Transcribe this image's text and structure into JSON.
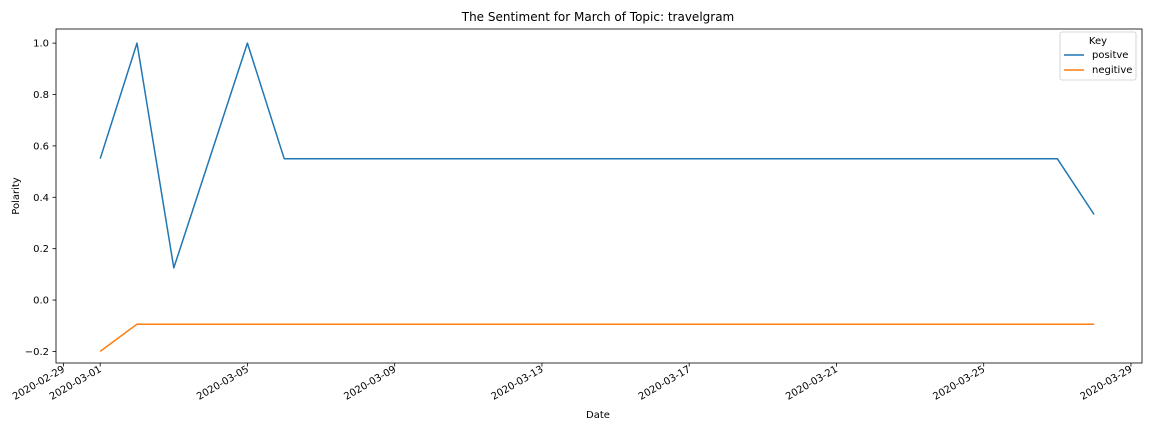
{
  "chart_data": {
    "type": "line",
    "title": "The Sentiment for March of Topic: travelgram",
    "xlabel": "Date",
    "ylabel": "Polarity",
    "x_tick_labels": [
      "2020-02-29",
      "2020-03-01",
      "2020-03-05",
      "2020-03-09",
      "2020-03-13",
      "2020-03-17",
      "2020-03-21",
      "2020-03-25",
      "2020-03-29"
    ],
    "xlim": [
      "2020-02-28",
      "2020-03-29"
    ],
    "y_ticks": [
      -0.2,
      0.0,
      0.2,
      0.4,
      0.6,
      0.8,
      1.0
    ],
    "y_tick_labels": [
      "−0.2",
      "0.0",
      "0.2",
      "0.4",
      "0.6",
      "0.8",
      "1.0"
    ],
    "ylim": [
      -0.245,
      1.055
    ],
    "grid": false,
    "legend": {
      "title": "Key",
      "placement": "top-right"
    },
    "series": [
      {
        "name": "positve",
        "color": "#1f77b4",
        "x": [
          "2020-03-01",
          "2020-03-02",
          "2020-03-03",
          "2020-03-05",
          "2020-03-06",
          "2020-03-27",
          "2020-03-28"
        ],
        "y": [
          0.55,
          1.0,
          0.125,
          1.0,
          0.55,
          0.55,
          0.333
        ]
      },
      {
        "name": "negitive",
        "color": "#ff7f0e",
        "x": [
          "2020-03-01",
          "2020-03-02",
          "2020-03-28"
        ],
        "y": [
          -0.2,
          -0.094,
          -0.094
        ]
      }
    ]
  }
}
